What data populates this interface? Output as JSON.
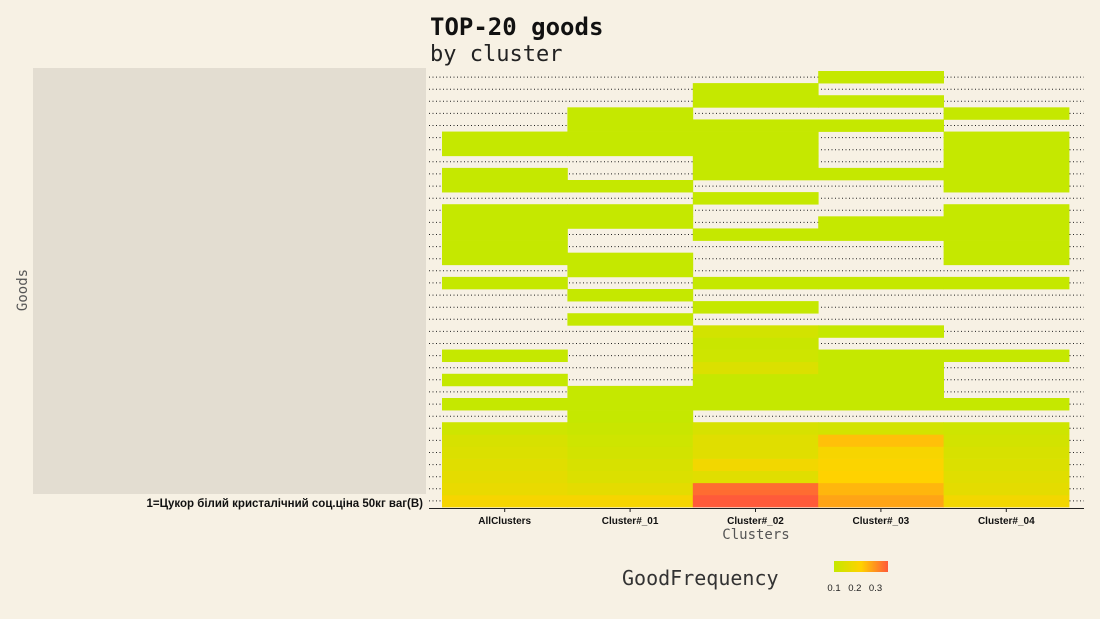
{
  "chart_data": {
    "type": "heatmap",
    "title": "TOP-20 goods",
    "subtitle": "by cluster",
    "xlabel": "Clusters",
    "ylabel": "Goods",
    "categories": [
      "AllClusters",
      "Cluster#_01",
      "Cluster#_02",
      "Cluster#_03",
      "Cluster#_04"
    ],
    "visible_row_label": "1=Цукор білий кристалічний соц.ціна 50кг ваг(В)",
    "row_labels_rows_1_to_35": "obscured in original",
    "rows": [
      [
        0.21,
        0.21,
        0.36,
        0.28,
        0.2
      ],
      [
        0.18,
        0.17,
        0.34,
        0.26,
        0.17
      ],
      [
        0.17,
        0.15,
        0.16,
        0.23,
        0.16
      ],
      [
        0.16,
        0.14,
        0.2,
        0.22,
        0.15
      ],
      [
        0.15,
        0.13,
        0.16,
        0.21,
        0.14
      ],
      [
        0.14,
        0.12,
        0.16,
        0.25,
        0.13
      ],
      [
        0.12,
        0.11,
        0.14,
        0.13,
        0.12
      ],
      [
        null,
        0.1,
        null,
        null,
        null
      ],
      [
        0.1,
        0.1,
        0.1,
        0.1,
        0.1
      ],
      [
        null,
        0.1,
        0.1,
        0.1,
        null
      ],
      [
        0.1,
        null,
        0.1,
        0.1,
        null
      ],
      [
        null,
        null,
        0.15,
        0.1,
        null
      ],
      [
        0.1,
        null,
        0.12,
        0.1,
        0.1
      ],
      [
        null,
        null,
        0.11,
        null,
        null
      ],
      [
        null,
        null,
        0.13,
        0.1,
        null
      ],
      [
        null,
        0.1,
        null,
        null,
        null
      ],
      [
        null,
        null,
        0.1,
        null,
        null
      ],
      [
        null,
        0.1,
        null,
        null,
        null
      ],
      [
        0.1,
        null,
        0.1,
        0.1,
        0.1
      ],
      [
        null,
        0.1,
        null,
        null,
        null
      ],
      [
        0.1,
        0.1,
        null,
        null,
        0.1
      ],
      [
        0.1,
        null,
        null,
        null,
        0.1
      ],
      [
        0.1,
        null,
        0.1,
        0.1,
        0.1
      ],
      [
        0.1,
        0.1,
        null,
        0.1,
        0.1
      ],
      [
        0.1,
        0.1,
        null,
        null,
        0.1
      ],
      [
        null,
        null,
        0.1,
        null,
        null
      ],
      [
        0.1,
        0.1,
        null,
        null,
        0.1
      ],
      [
        0.1,
        null,
        0.1,
        0.1,
        0.1
      ],
      [
        null,
        null,
        0.1,
        null,
        0.1
      ],
      [
        0.1,
        0.1,
        0.1,
        null,
        0.1
      ],
      [
        0.1,
        0.1,
        0.1,
        null,
        0.1
      ],
      [
        null,
        0.1,
        0.1,
        0.1,
        null
      ],
      [
        null,
        0.1,
        null,
        null,
        0.1
      ],
      [
        null,
        null,
        0.1,
        0.1,
        null
      ],
      [
        null,
        null,
        0.1,
        null,
        null
      ],
      [
        null,
        null,
        null,
        0.1,
        null
      ]
    ],
    "color_scale": {
      "low": "#c5e800",
      "high": "#ff5a3a",
      "min": 0.1,
      "max": 0.36
    },
    "legend": {
      "title": "GoodFrequency",
      "ticks": [
        "0.1",
        "0.2",
        "0.3"
      ],
      "position": "bottom-right"
    },
    "grid": "dotted row lines",
    "label_panel_color": "#e3ddd1"
  }
}
